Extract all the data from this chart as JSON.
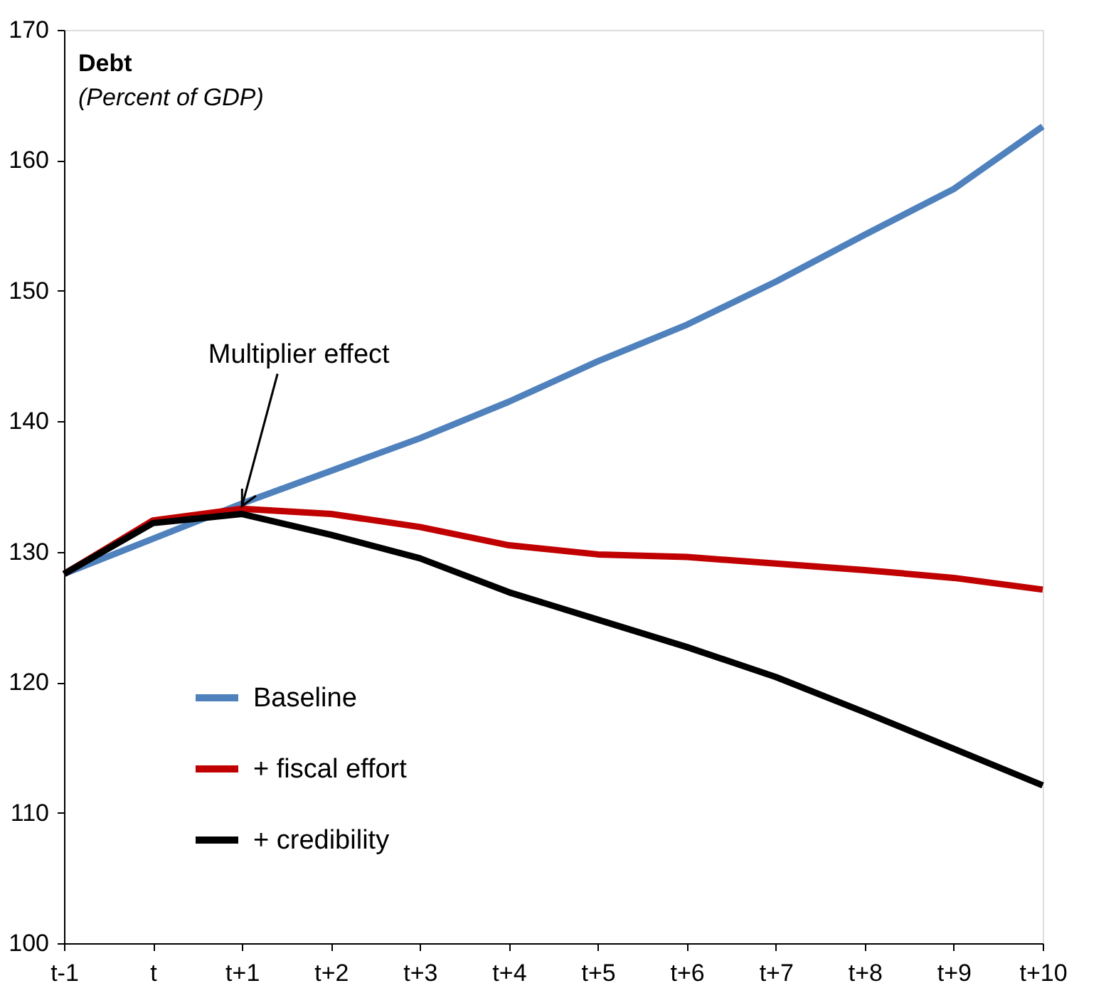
{
  "chart_data": {
    "type": "line",
    "title": "Debt",
    "subtitle": "(Percent of GDP)",
    "categories": [
      "t-1",
      "t",
      "t+1",
      "t+2",
      "t+3",
      "t+4",
      "t+5",
      "t+6",
      "t+7",
      "t+8",
      "t+9",
      "t+10"
    ],
    "series": [
      {
        "name": "Baseline",
        "color": "#4f81bd",
        "values": [
          128.3,
          131.0,
          133.7,
          136.2,
          138.7,
          141.5,
          144.6,
          147.4,
          150.7,
          154.3,
          157.8,
          162.6
        ]
      },
      {
        "name": "+ fiscal effort",
        "color": "#c00000",
        "values": [
          128.3,
          132.4,
          133.3,
          132.9,
          131.9,
          130.5,
          129.8,
          129.6,
          129.1,
          128.6,
          128.0,
          127.1
        ]
      },
      {
        "name": "+ credibility",
        "color": "#000000",
        "values": [
          128.3,
          132.2,
          132.9,
          131.3,
          129.5,
          126.9,
          124.8,
          122.7,
          120.4,
          117.7,
          114.9,
          112.1
        ]
      }
    ],
    "ylim": [
      100,
      170
    ],
    "yticks": [
      100,
      110,
      120,
      130,
      140,
      150,
      160,
      170
    ],
    "grid": false,
    "legend": "bottom left",
    "marker": "none",
    "line_style": "solid",
    "annotations": [
      {
        "text": "Multiplier effect",
        "x": "t+1",
        "y": 133.5
      }
    ]
  }
}
